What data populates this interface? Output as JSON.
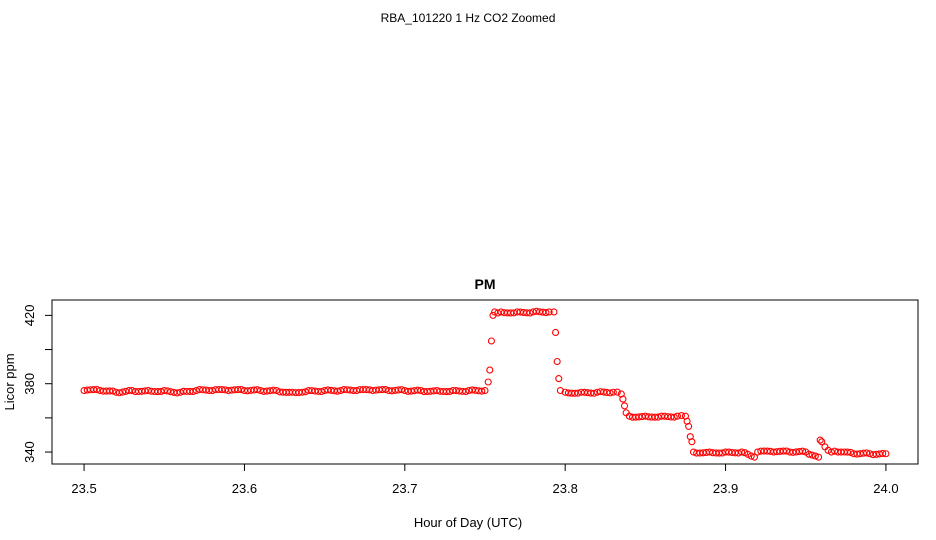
{
  "page_title": "RBA_101220  1 Hz CO2 Zoomed",
  "chart_data": {
    "type": "scatter",
    "title": "PM",
    "xlabel": "Hour of Day (UTC)",
    "ylabel": "Licor ppm",
    "xlim": [
      23.48,
      24.02
    ],
    "ylim": [
      333,
      429
    ],
    "x_ticks": [
      23.5,
      23.6,
      23.7,
      23.8,
      23.9,
      24.0
    ],
    "x_tick_labels": [
      "23.5",
      "23.6",
      "23.7",
      "23.8",
      "23.9",
      "24.0"
    ],
    "y_ticks": [
      340,
      360,
      380,
      400,
      420
    ],
    "y_tick_labels": [
      "340",
      "",
      "380",
      "",
      "420"
    ],
    "grid": false,
    "marker": "open-circle",
    "color": "#ff0000",
    "series_points": {
      "x": [
        23.5,
        23.51,
        23.52,
        23.53,
        23.54,
        23.55,
        23.56,
        23.57,
        23.58,
        23.59,
        23.6,
        23.61,
        23.62,
        23.63,
        23.64,
        23.65,
        23.66,
        23.67,
        23.68,
        23.69,
        23.7,
        23.71,
        23.72,
        23.73,
        23.74,
        23.75,
        23.752,
        23.753,
        23.754,
        23.755,
        23.756,
        23.76,
        23.77,
        23.78,
        23.79,
        23.793,
        23.794,
        23.795,
        23.796,
        23.797,
        23.8,
        23.81,
        23.82,
        23.83,
        23.835,
        23.836,
        23.837,
        23.838,
        23.84,
        23.85,
        23.86,
        23.87,
        23.875,
        23.876,
        23.877,
        23.878,
        23.879,
        23.88,
        23.89,
        23.9,
        23.91,
        23.918,
        23.92,
        23.93,
        23.94,
        23.95,
        23.958,
        23.959,
        23.96,
        23.962,
        23.964,
        23.966,
        23.97,
        23.98,
        23.99,
        24.0
      ],
      "y": [
        376,
        376,
        375,
        376,
        376,
        376,
        375,
        376,
        376,
        376,
        376,
        376,
        376,
        375,
        376,
        376,
        376,
        376,
        376,
        376,
        376,
        376,
        376,
        376,
        376,
        376,
        381,
        388,
        405,
        420,
        422,
        422,
        422,
        422,
        422,
        422,
        410,
        393,
        383,
        376,
        375,
        375,
        375,
        375,
        374,
        371,
        367,
        363,
        361,
        361,
        361,
        361,
        361,
        358,
        355,
        349,
        346,
        340,
        340,
        340,
        340,
        337,
        340,
        340,
        340,
        340,
        337,
        347,
        346,
        343,
        341,
        340,
        340,
        339,
        339,
        339
      ]
    }
  }
}
